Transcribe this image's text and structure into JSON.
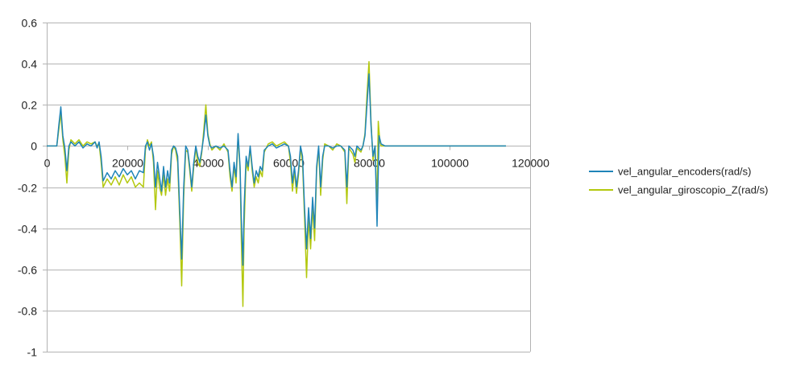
{
  "chart_data": {
    "type": "line",
    "title": "",
    "xlabel": "",
    "ylabel": "",
    "xlim": [
      0,
      120000
    ],
    "ylim": [
      -1,
      0.6
    ],
    "x_ticks": [
      "0",
      "20000",
      "40000",
      "60000",
      "80000",
      "100000",
      "120000"
    ],
    "y_ticks": [
      "0.6",
      "0.4",
      "0.2",
      "0",
      "-0.2",
      "-0.4",
      "-0.6",
      "-0.8",
      "-1"
    ],
    "grid": "horizontal",
    "legend_position": "right",
    "series": [
      {
        "name": "vel_angular_encoders(rad/s)",
        "color": "#1f84b8",
        "points": [
          [
            0,
            0
          ],
          [
            2500,
            0
          ],
          [
            3000,
            0.1
          ],
          [
            3500,
            0.19
          ],
          [
            4000,
            0.05
          ],
          [
            4500,
            -0.01
          ],
          [
            5000,
            -0.12
          ],
          [
            5500,
            0.0
          ],
          [
            6000,
            0.02
          ],
          [
            7000,
            0.0
          ],
          [
            8000,
            0.02
          ],
          [
            9000,
            -0.01
          ],
          [
            10000,
            0.01
          ],
          [
            11000,
            0.0
          ],
          [
            12000,
            0.02
          ],
          [
            12500,
            -0.01
          ],
          [
            13000,
            0.02
          ],
          [
            13500,
            -0.05
          ],
          [
            14000,
            -0.17
          ],
          [
            15000,
            -0.13
          ],
          [
            16000,
            -0.16
          ],
          [
            17000,
            -0.12
          ],
          [
            18000,
            -0.15
          ],
          [
            19000,
            -0.11
          ],
          [
            20000,
            -0.14
          ],
          [
            21000,
            -0.12
          ],
          [
            22000,
            -0.16
          ],
          [
            23000,
            -0.12
          ],
          [
            24000,
            -0.13
          ],
          [
            24500,
            0.0
          ],
          [
            25000,
            0.02
          ],
          [
            25500,
            -0.02
          ],
          [
            26000,
            0.01
          ],
          [
            26500,
            -0.05
          ],
          [
            27000,
            -0.2
          ],
          [
            27500,
            -0.08
          ],
          [
            28000,
            -0.15
          ],
          [
            28500,
            -0.22
          ],
          [
            29000,
            -0.1
          ],
          [
            29500,
            -0.2
          ],
          [
            30000,
            -0.12
          ],
          [
            30500,
            -0.18
          ],
          [
            31000,
            -0.02
          ],
          [
            31500,
            0.0
          ],
          [
            32000,
            -0.01
          ],
          [
            32500,
            -0.05
          ],
          [
            33000,
            -0.3
          ],
          [
            33500,
            -0.55
          ],
          [
            34000,
            -0.2
          ],
          [
            34500,
            0.0
          ],
          [
            35000,
            -0.02
          ],
          [
            35500,
            -0.1
          ],
          [
            36000,
            -0.2
          ],
          [
            36500,
            -0.08
          ],
          [
            37000,
            0.0
          ],
          [
            37500,
            -0.05
          ],
          [
            38000,
            -0.08
          ],
          [
            38500,
            -0.02
          ],
          [
            39000,
            0.05
          ],
          [
            39500,
            0.15
          ],
          [
            40000,
            0.05
          ],
          [
            40500,
            0.0
          ],
          [
            41000,
            -0.01
          ],
          [
            42000,
            0.0
          ],
          [
            43000,
            -0.01
          ],
          [
            44000,
            0.0
          ],
          [
            45000,
            -0.02
          ],
          [
            45500,
            -0.12
          ],
          [
            46000,
            -0.2
          ],
          [
            46500,
            -0.08
          ],
          [
            47000,
            -0.15
          ],
          [
            47500,
            0.06
          ],
          [
            48000,
            -0.1
          ],
          [
            48300,
            -0.35
          ],
          [
            48700,
            -0.58
          ],
          [
            49000,
            -0.3
          ],
          [
            49500,
            -0.05
          ],
          [
            50000,
            -0.1
          ],
          [
            50500,
            0.0
          ],
          [
            51000,
            -0.1
          ],
          [
            51500,
            -0.18
          ],
          [
            52000,
            -0.12
          ],
          [
            52500,
            -0.15
          ],
          [
            53000,
            -0.1
          ],
          [
            53500,
            -0.12
          ],
          [
            54000,
            -0.02
          ],
          [
            55000,
            0.0
          ],
          [
            56000,
            0.01
          ],
          [
            57000,
            -0.01
          ],
          [
            58000,
            0.0
          ],
          [
            59000,
            0.01
          ],
          [
            60000,
            0.0
          ],
          [
            60500,
            -0.05
          ],
          [
            61000,
            -0.18
          ],
          [
            61500,
            -0.1
          ],
          [
            62000,
            -0.2
          ],
          [
            62500,
            -0.12
          ],
          [
            63000,
            0.0
          ],
          [
            63500,
            -0.05
          ],
          [
            64000,
            -0.3
          ],
          [
            64500,
            -0.5
          ],
          [
            65000,
            -0.3
          ],
          [
            65500,
            -0.45
          ],
          [
            66000,
            -0.25
          ],
          [
            66500,
            -0.4
          ],
          [
            67000,
            -0.1
          ],
          [
            67500,
            0.0
          ],
          [
            68000,
            -0.2
          ],
          [
            68500,
            -0.05
          ],
          [
            69000,
            0.0
          ],
          [
            70000,
            0.0
          ],
          [
            71000,
            -0.01
          ],
          [
            72000,
            0.0
          ],
          [
            73000,
            0.0
          ],
          [
            74000,
            -0.02
          ],
          [
            74500,
            -0.2
          ],
          [
            75000,
            0.0
          ],
          [
            76000,
            -0.02
          ],
          [
            76500,
            -0.05
          ],
          [
            77000,
            0.0
          ],
          [
            78000,
            -0.02
          ],
          [
            78500,
            0.0
          ],
          [
            79000,
            0.05
          ],
          [
            79500,
            0.2
          ],
          [
            80000,
            0.35
          ],
          [
            80500,
            0.1
          ],
          [
            81000,
            -0.05
          ],
          [
            81500,
            0.0
          ],
          [
            82000,
            -0.39
          ],
          [
            82500,
            0.05
          ],
          [
            83000,
            0.01
          ],
          [
            84000,
            0.0
          ],
          [
            90000,
            0.0
          ],
          [
            100000,
            0.0
          ],
          [
            110000,
            0.0
          ],
          [
            114000,
            0.0
          ]
        ]
      },
      {
        "name": "vel_angular_giroscopio_Z(rad/s)",
        "color": "#b3c80e",
        "points": [
          [
            0,
            0
          ],
          [
            2500,
            0
          ],
          [
            3000,
            0.08
          ],
          [
            3500,
            0.16
          ],
          [
            4000,
            0.03
          ],
          [
            4500,
            -0.05
          ],
          [
            5000,
            -0.18
          ],
          [
            5500,
            -0.02
          ],
          [
            6000,
            0.03
          ],
          [
            7000,
            0.01
          ],
          [
            8000,
            0.03
          ],
          [
            9000,
            0.0
          ],
          [
            10000,
            0.02
          ],
          [
            11000,
            0.01
          ],
          [
            12000,
            0.02
          ],
          [
            12500,
            0.0
          ],
          [
            13000,
            0.01
          ],
          [
            13500,
            -0.08
          ],
          [
            14000,
            -0.2
          ],
          [
            15000,
            -0.16
          ],
          [
            16000,
            -0.19
          ],
          [
            17000,
            -0.15
          ],
          [
            18000,
            -0.19
          ],
          [
            19000,
            -0.14
          ],
          [
            20000,
            -0.18
          ],
          [
            21000,
            -0.15
          ],
          [
            22000,
            -0.2
          ],
          [
            23000,
            -0.18
          ],
          [
            24000,
            -0.2
          ],
          [
            24500,
            -0.02
          ],
          [
            25000,
            0.03
          ],
          [
            25500,
            0.0
          ],
          [
            26000,
            0.02
          ],
          [
            26500,
            -0.08
          ],
          [
            27000,
            -0.31
          ],
          [
            27500,
            -0.12
          ],
          [
            28000,
            -0.2
          ],
          [
            28500,
            -0.24
          ],
          [
            29000,
            -0.14
          ],
          [
            29500,
            -0.24
          ],
          [
            30000,
            -0.16
          ],
          [
            30500,
            -0.22
          ],
          [
            31000,
            -0.04
          ],
          [
            31500,
            0.0
          ],
          [
            32000,
            -0.02
          ],
          [
            32500,
            -0.08
          ],
          [
            33000,
            -0.35
          ],
          [
            33500,
            -0.68
          ],
          [
            34000,
            -0.25
          ],
          [
            34500,
            -0.02
          ],
          [
            35000,
            -0.03
          ],
          [
            35500,
            -0.12
          ],
          [
            36000,
            -0.22
          ],
          [
            36500,
            -0.1
          ],
          [
            37000,
            -0.01
          ],
          [
            37500,
            -0.08
          ],
          [
            38000,
            -0.1
          ],
          [
            38500,
            -0.03
          ],
          [
            39000,
            0.08
          ],
          [
            39500,
            0.2
          ],
          [
            40000,
            0.06
          ],
          [
            40500,
            0.01
          ],
          [
            41000,
            -0.02
          ],
          [
            42000,
            0.0
          ],
          [
            43000,
            -0.02
          ],
          [
            44000,
            0.01
          ],
          [
            45000,
            -0.03
          ],
          [
            45500,
            -0.15
          ],
          [
            46000,
            -0.22
          ],
          [
            46500,
            -0.1
          ],
          [
            47000,
            -0.18
          ],
          [
            47500,
            0.05
          ],
          [
            48000,
            -0.12
          ],
          [
            48300,
            -0.45
          ],
          [
            48700,
            -0.78
          ],
          [
            49000,
            -0.4
          ],
          [
            49500,
            -0.08
          ],
          [
            50000,
            -0.12
          ],
          [
            50500,
            -0.01
          ],
          [
            51000,
            -0.12
          ],
          [
            51500,
            -0.2
          ],
          [
            52000,
            -0.15
          ],
          [
            52500,
            -0.18
          ],
          [
            53000,
            -0.12
          ],
          [
            53500,
            -0.15
          ],
          [
            54000,
            -0.03
          ],
          [
            55000,
            0.01
          ],
          [
            56000,
            0.02
          ],
          [
            57000,
            0.0
          ],
          [
            58000,
            0.01
          ],
          [
            59000,
            0.02
          ],
          [
            60000,
            0.0
          ],
          [
            60500,
            -0.08
          ],
          [
            61000,
            -0.22
          ],
          [
            61500,
            -0.12
          ],
          [
            62000,
            -0.23
          ],
          [
            62500,
            -0.14
          ],
          [
            63000,
            -0.01
          ],
          [
            63500,
            -0.08
          ],
          [
            64000,
            -0.35
          ],
          [
            64500,
            -0.64
          ],
          [
            65000,
            -0.35
          ],
          [
            65500,
            -0.5
          ],
          [
            66000,
            -0.3
          ],
          [
            66500,
            -0.46
          ],
          [
            67000,
            -0.12
          ],
          [
            67500,
            -0.01
          ],
          [
            68000,
            -0.24
          ],
          [
            68500,
            -0.07
          ],
          [
            69000,
            0.01
          ],
          [
            70000,
            0.0
          ],
          [
            71000,
            -0.02
          ],
          [
            72000,
            0.01
          ],
          [
            73000,
            0.0
          ],
          [
            74000,
            -0.03
          ],
          [
            74500,
            -0.28
          ],
          [
            75000,
            -0.01
          ],
          [
            76000,
            -0.04
          ],
          [
            76500,
            -0.08
          ],
          [
            77000,
            -0.01
          ],
          [
            78000,
            -0.03
          ],
          [
            78500,
            0.0
          ],
          [
            79000,
            0.06
          ],
          [
            79500,
            0.25
          ],
          [
            80000,
            0.41
          ],
          [
            80500,
            0.12
          ],
          [
            81000,
            -0.07
          ],
          [
            81500,
            0.0
          ],
          [
            82000,
            -0.3
          ],
          [
            82300,
            0.12
          ],
          [
            82700,
            0.02
          ],
          [
            83000,
            0.0
          ],
          [
            84000,
            0.0
          ],
          [
            90000,
            0.0
          ],
          [
            100000,
            0.0
          ],
          [
            110000,
            0.0
          ],
          [
            114000,
            0.0
          ]
        ]
      }
    ]
  }
}
